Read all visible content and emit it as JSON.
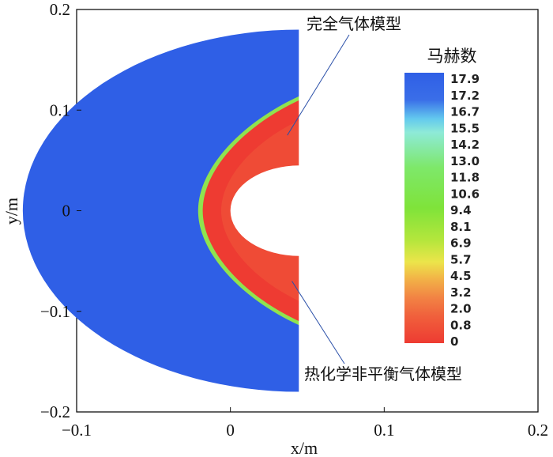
{
  "chart_data": {
    "type": "heatmap",
    "title": "",
    "xlabel": "x/m",
    "ylabel": "y/m",
    "xlim": [
      -0.1,
      0.2
    ],
    "ylim": [
      -0.2,
      0.2
    ],
    "x_ticks": [
      "−0.1",
      "0",
      "0.1",
      "0.2"
    ],
    "y_ticks": [
      "0.2",
      "0.1",
      "0",
      "−0.1",
      "−0.2"
    ],
    "colorbar": {
      "title": "马赫数",
      "ticks": [
        "17.9",
        "17.2",
        "16.7",
        "15.5",
        "14.2",
        "13.0",
        "11.8",
        "10.6",
        "9.4",
        "8.1",
        "6.9",
        "5.7",
        "4.5",
        "3.2",
        "2.0",
        "0.8",
        "0"
      ],
      "min": 0,
      "max": 17.9
    },
    "domain": {
      "outer_radius": 0.18,
      "outer_center_x": 0.045,
      "body_radius": 0.045,
      "body_center_x": 0.045,
      "x_cut": 0.045,
      "freestream_mach": 17.9
    },
    "shock_layer": {
      "nose_x": -0.018,
      "half_width_at_cut": 0.11,
      "post_shock_mach": 0.8
    },
    "annotations": [
      {
        "text": "完全气体模型",
        "target_x": 0.037,
        "target_y": 0.075
      },
      {
        "text": "热化学非平衡气体模型",
        "target_x": 0.04,
        "target_y": -0.07
      }
    ]
  }
}
